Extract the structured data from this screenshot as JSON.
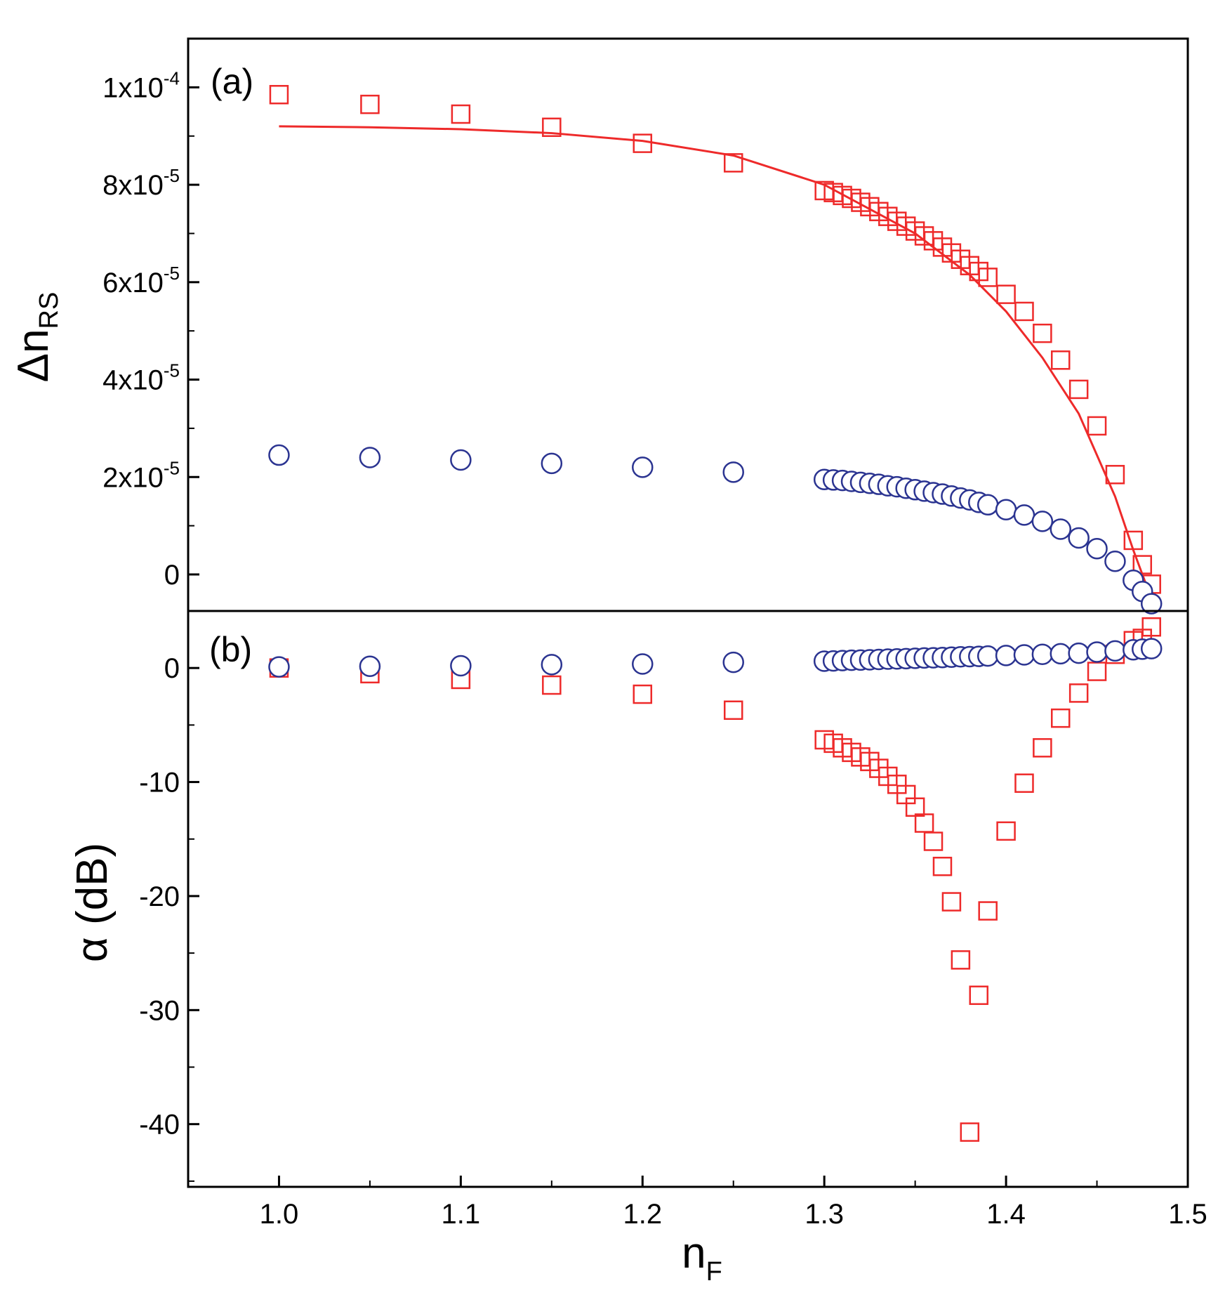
{
  "colors": {
    "square": "#ee2a2a",
    "circle": "#2b3491",
    "fit": "#ee2a2a",
    "axis": "#000000"
  },
  "x_axis": {
    "label": "n",
    "label_sub": "F",
    "ticks": [
      "1.0",
      "1.1",
      "1.2",
      "1.3",
      "1.4",
      "1.5"
    ],
    "range": [
      0.95,
      1.5
    ]
  },
  "chart_data": [
    {
      "panel_label": "(a)",
      "type": "scatter",
      "ylabel": "Δn",
      "ylabel_sub": "RS",
      "ylim": [
        -7.5e-06,
        0.00011
      ],
      "ytick_values": [
        0,
        2e-05,
        4e-05,
        6e-05,
        8e-05,
        0.0001
      ],
      "ytick_labels": [
        {
          "base": "0",
          "exp": ""
        },
        {
          "base": "2x10",
          "exp": "-5"
        },
        {
          "base": "4x10",
          "exp": "-5"
        },
        {
          "base": "6x10",
          "exp": "-5"
        },
        {
          "base": "8x10",
          "exp": "-5"
        },
        {
          "base": "1x10",
          "exp": "-4"
        }
      ],
      "series": [
        {
          "name": "squares",
          "marker": "square",
          "x": [
            1.0,
            1.05,
            1.1,
            1.15,
            1.2,
            1.25,
            1.3,
            1.305,
            1.31,
            1.315,
            1.32,
            1.325,
            1.33,
            1.335,
            1.34,
            1.345,
            1.35,
            1.355,
            1.36,
            1.365,
            1.37,
            1.375,
            1.38,
            1.385,
            1.39,
            1.4,
            1.41,
            1.42,
            1.43,
            1.44,
            1.45,
            1.46,
            1.47,
            1.475,
            1.48
          ],
          "y": [
            9.85e-05,
            9.65e-05,
            9.45e-05,
            9.18e-05,
            8.85e-05,
            8.45e-05,
            7.88e-05,
            7.84e-05,
            7.78e-05,
            7.72e-05,
            7.64e-05,
            7.55e-05,
            7.45e-05,
            7.35e-05,
            7.25e-05,
            7.15e-05,
            7.05e-05,
            6.95e-05,
            6.85e-05,
            6.72e-05,
            6.6e-05,
            6.47e-05,
            6.34e-05,
            6.22e-05,
            6.1e-05,
            5.75e-05,
            5.4e-05,
            4.95e-05,
            4.4e-05,
            3.8e-05,
            3.05e-05,
            2.05e-05,
            7e-06,
            2e-06,
            -2e-06
          ]
        },
        {
          "name": "circles",
          "marker": "circle",
          "x": [
            1.0,
            1.05,
            1.1,
            1.15,
            1.2,
            1.25,
            1.3,
            1.305,
            1.31,
            1.315,
            1.32,
            1.325,
            1.33,
            1.335,
            1.34,
            1.345,
            1.35,
            1.355,
            1.36,
            1.365,
            1.37,
            1.375,
            1.38,
            1.385,
            1.39,
            1.4,
            1.41,
            1.42,
            1.43,
            1.44,
            1.45,
            1.46,
            1.47,
            1.475,
            1.48
          ],
          "y": [
            2.45e-05,
            2.4e-05,
            2.35e-05,
            2.28e-05,
            2.2e-05,
            2.1e-05,
            1.95e-05,
            1.94e-05,
            1.93e-05,
            1.91e-05,
            1.89e-05,
            1.87e-05,
            1.85e-05,
            1.82e-05,
            1.8e-05,
            1.77e-05,
            1.74e-05,
            1.71e-05,
            1.68e-05,
            1.65e-05,
            1.61e-05,
            1.57e-05,
            1.53e-05,
            1.48e-05,
            1.43e-05,
            1.33e-05,
            1.22e-05,
            1.09e-05,
            9.3e-06,
            7.5e-06,
            5.3e-06,
            2.7e-06,
            -1.2e-06,
            -3.5e-06,
            -6e-06
          ]
        }
      ],
      "fit": {
        "name": "fit",
        "x": [
          1.0,
          1.05,
          1.1,
          1.15,
          1.2,
          1.25,
          1.3,
          1.35,
          1.38,
          1.4,
          1.42,
          1.44,
          1.46,
          1.47,
          1.48
        ],
        "y": [
          9.2e-05,
          9.18e-05,
          9.14e-05,
          9.06e-05,
          8.9e-05,
          8.6e-05,
          8e-05,
          7e-05,
          6.15e-05,
          5.4e-05,
          4.45e-05,
          3.3e-05,
          1.6e-05,
          5e-06,
          -5e-06
        ]
      }
    },
    {
      "panel_label": "(b)",
      "type": "scatter",
      "ylabel": "α (dB)",
      "ylim": [
        -45.5,
        5
      ],
      "ytick_values": [
        0,
        -10,
        -20,
        -30,
        -40
      ],
      "ytick_labels": [
        {
          "base": "0",
          "exp": ""
        },
        {
          "base": "-10",
          "exp": ""
        },
        {
          "base": "-20",
          "exp": ""
        },
        {
          "base": "-30",
          "exp": ""
        },
        {
          "base": "-40",
          "exp": ""
        }
      ],
      "series": [
        {
          "name": "squares",
          "marker": "square",
          "x": [
            1.0,
            1.05,
            1.1,
            1.15,
            1.2,
            1.25,
            1.3,
            1.305,
            1.31,
            1.315,
            1.32,
            1.325,
            1.33,
            1.335,
            1.34,
            1.345,
            1.35,
            1.355,
            1.36,
            1.365,
            1.37,
            1.375,
            1.38,
            1.385,
            1.39,
            1.4,
            1.41,
            1.42,
            1.43,
            1.44,
            1.45,
            1.46,
            1.47,
            1.475,
            1.48
          ],
          "y": [
            0,
            -0.5,
            -1,
            -1.5,
            -2.3,
            -3.7,
            -6.3,
            -6.6,
            -7,
            -7.4,
            -7.8,
            -8.2,
            -8.8,
            -9.5,
            -10.2,
            -11.1,
            -12.2,
            -13.6,
            -15.2,
            -17.4,
            -20.5,
            -25.6,
            -40.7,
            -28.7,
            -21.3,
            -14.3,
            -10.1,
            -7,
            -4.4,
            -2.2,
            -0.3,
            1.2,
            2.4,
            2.6,
            3.6
          ]
        },
        {
          "name": "circles",
          "marker": "circle",
          "x": [
            1.0,
            1.05,
            1.1,
            1.15,
            1.2,
            1.25,
            1.3,
            1.305,
            1.31,
            1.315,
            1.32,
            1.325,
            1.33,
            1.335,
            1.34,
            1.345,
            1.35,
            1.355,
            1.36,
            1.365,
            1.37,
            1.375,
            1.38,
            1.385,
            1.39,
            1.4,
            1.41,
            1.42,
            1.43,
            1.44,
            1.45,
            1.46,
            1.47,
            1.475,
            1.48
          ],
          "y": [
            0.1,
            0.15,
            0.2,
            0.3,
            0.35,
            0.5,
            0.6,
            0.62,
            0.65,
            0.68,
            0.7,
            0.72,
            0.75,
            0.78,
            0.8,
            0.82,
            0.85,
            0.88,
            0.9,
            0.92,
            0.95,
            0.98,
            1,
            1.02,
            1.05,
            1.1,
            1.15,
            1.2,
            1.25,
            1.3,
            1.4,
            1.5,
            1.6,
            1.65,
            1.7
          ]
        }
      ]
    }
  ]
}
